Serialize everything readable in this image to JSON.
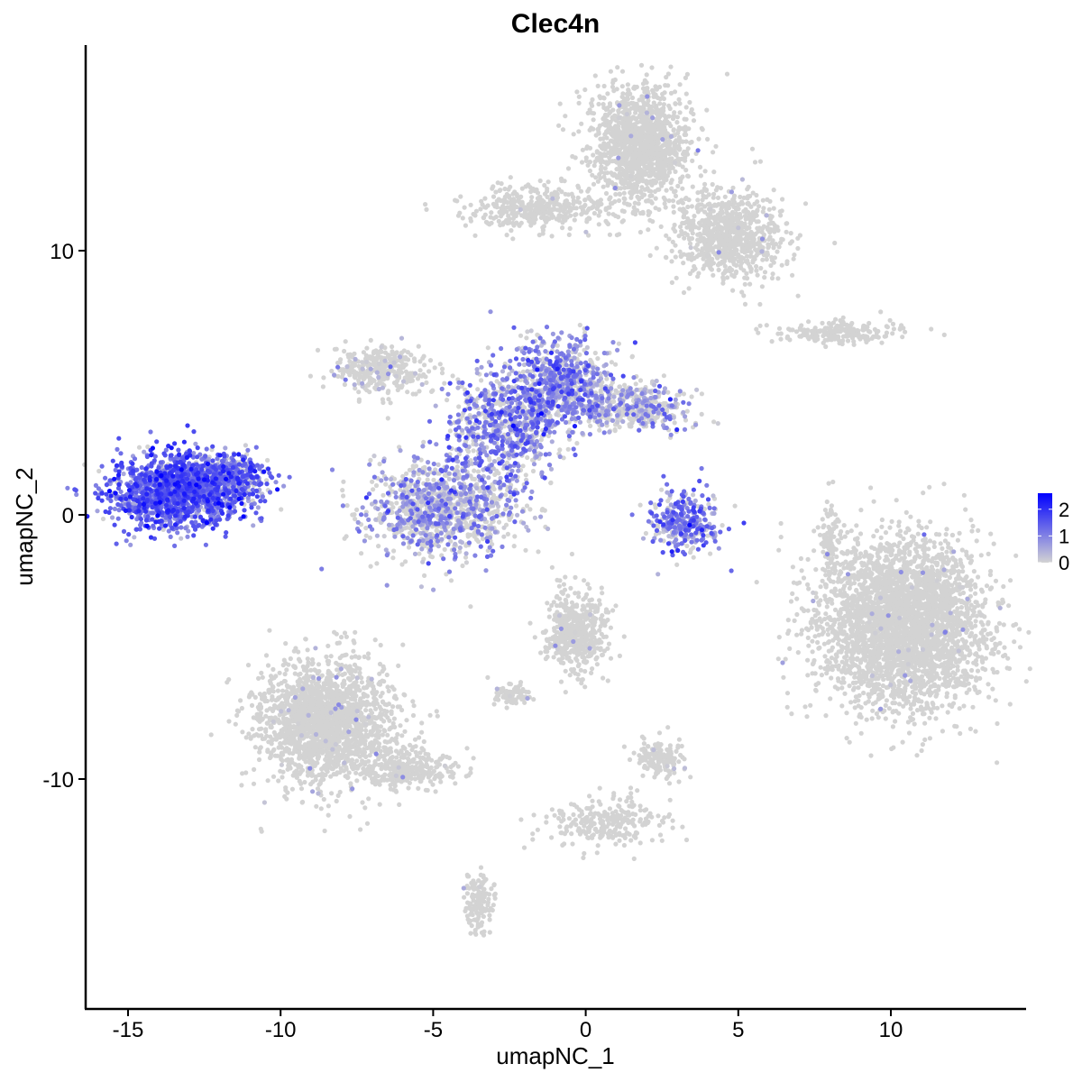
{
  "chart_data": {
    "type": "scatter",
    "title": "Clec4n",
    "xlabel": "umapNC_1",
    "ylabel": "umapNC_2",
    "xlim": [
      -16.4,
      14.4
    ],
    "ylim": [
      -18.7,
      17.8
    ],
    "xticks": [
      -15,
      -10,
      -5,
      0,
      5,
      10
    ],
    "yticks": [
      -10,
      0,
      10
    ],
    "xtick_labels": [
      "-15",
      "-10",
      "-5",
      "0",
      "5",
      "10"
    ],
    "ytick_labels": [
      "-10",
      "0",
      "10"
    ],
    "grid": false,
    "legend": {
      "position": "right",
      "type": "colorbar",
      "ticks": [
        0,
        1,
        2
      ],
      "tick_labels": [
        "0",
        "1",
        "2"
      ],
      "max": 2.6
    },
    "colors": {
      "low": "#D3D3D3",
      "high": "#0000FF"
    },
    "clusters": [
      {
        "x": -13.3,
        "y": 0.9,
        "sx": 1.1,
        "sy": 0.7,
        "n": 1500,
        "expr": 1.1
      },
      {
        "x": -11.6,
        "y": 1.5,
        "sx": 0.6,
        "sy": 0.4,
        "n": 250,
        "expr": 0.9
      },
      {
        "x": -4.7,
        "y": 0.2,
        "sx": 1.2,
        "sy": 0.9,
        "n": 1100,
        "expr": 0.55
      },
      {
        "x": -6.7,
        "y": 5.5,
        "sx": 0.8,
        "sy": 0.45,
        "n": 350,
        "expr": 0.1
      },
      {
        "x": -2.6,
        "y": 3.4,
        "sx": 0.9,
        "sy": 1.0,
        "n": 700,
        "expr": 0.8
      },
      {
        "x": -0.8,
        "y": 5.0,
        "sx": 0.8,
        "sy": 0.8,
        "n": 700,
        "expr": 0.75
      },
      {
        "x": 1.5,
        "y": 4.1,
        "sx": 1.0,
        "sy": 0.45,
        "n": 450,
        "expr": 0.5
      },
      {
        "x": 3.2,
        "y": -0.3,
        "sx": 0.55,
        "sy": 0.6,
        "n": 300,
        "expr": 0.9
      },
      {
        "x": 1.8,
        "y": 14.0,
        "sx": 0.8,
        "sy": 1.1,
        "n": 1300,
        "expr": 0.01
      },
      {
        "x": 4.7,
        "y": 10.6,
        "sx": 0.9,
        "sy": 0.8,
        "n": 800,
        "expr": 0.01
      },
      {
        "x": -1.5,
        "y": 11.6,
        "sx": 1.3,
        "sy": 0.4,
        "n": 400,
        "expr": 0.01
      },
      {
        "x": 8.3,
        "y": 6.9,
        "sx": 1.0,
        "sy": 0.2,
        "n": 200,
        "expr": 0.01
      },
      {
        "x": 10.4,
        "y": -4.1,
        "sx": 1.4,
        "sy": 1.6,
        "n": 3200,
        "expr": 0.01
      },
      {
        "x": -8.6,
        "y": -7.8,
        "sx": 1.1,
        "sy": 1.2,
        "n": 1800,
        "expr": 0.02
      },
      {
        "x": -5.9,
        "y": -9.6,
        "sx": 0.9,
        "sy": 0.4,
        "n": 300,
        "expr": 0.01
      },
      {
        "x": -0.3,
        "y": -4.4,
        "sx": 0.5,
        "sy": 0.8,
        "n": 500,
        "expr": 0.01
      },
      {
        "x": -3.5,
        "y": -14.6,
        "sx": 0.25,
        "sy": 0.6,
        "n": 150,
        "expr": 0.01
      },
      {
        "x": 0.6,
        "y": -11.6,
        "sx": 1.0,
        "sy": 0.5,
        "n": 250,
        "expr": 0.01
      },
      {
        "x": 2.4,
        "y": -9.2,
        "sx": 0.4,
        "sy": 0.35,
        "n": 150,
        "expr": 0.05
      },
      {
        "x": 8.0,
        "y": -1.0,
        "sx": 0.15,
        "sy": 0.8,
        "n": 100,
        "expr": 0.02
      },
      {
        "x": -2.4,
        "y": -6.8,
        "sx": 0.3,
        "sy": 0.2,
        "n": 80,
        "expr": 0.05
      }
    ]
  }
}
